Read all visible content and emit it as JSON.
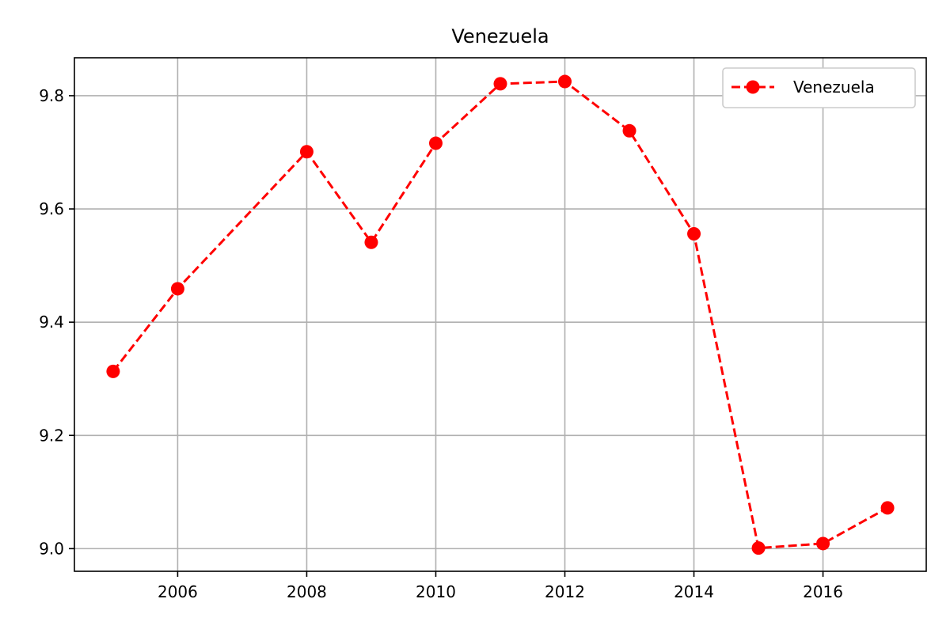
{
  "chart_data": {
    "type": "line",
    "title": "Venezuela",
    "xlabel": "",
    "ylabel": "",
    "x": [
      2005,
      2006,
      2008,
      2009,
      2010,
      2011,
      2012,
      2013,
      2014,
      2015,
      2016,
      2017
    ],
    "series": [
      {
        "name": "Venezuela",
        "color": "#ff0000",
        "line_style": "dashed",
        "marker": "circle",
        "values": [
          9.313,
          9.459,
          9.701,
          9.541,
          9.716,
          9.821,
          9.825,
          9.738,
          9.556,
          9.001,
          9.009,
          9.072
        ]
      }
    ],
    "xlim": [
      2004.4,
      2017.6
    ],
    "ylim": [
      8.96,
      9.867
    ],
    "x_ticks": [
      "2006",
      "2008",
      "2010",
      "2012",
      "2014",
      "2016"
    ],
    "y_ticks": [
      "9.0",
      "9.2",
      "9.4",
      "9.6",
      "9.8"
    ],
    "grid": true,
    "legend_position": "top-right"
  }
}
